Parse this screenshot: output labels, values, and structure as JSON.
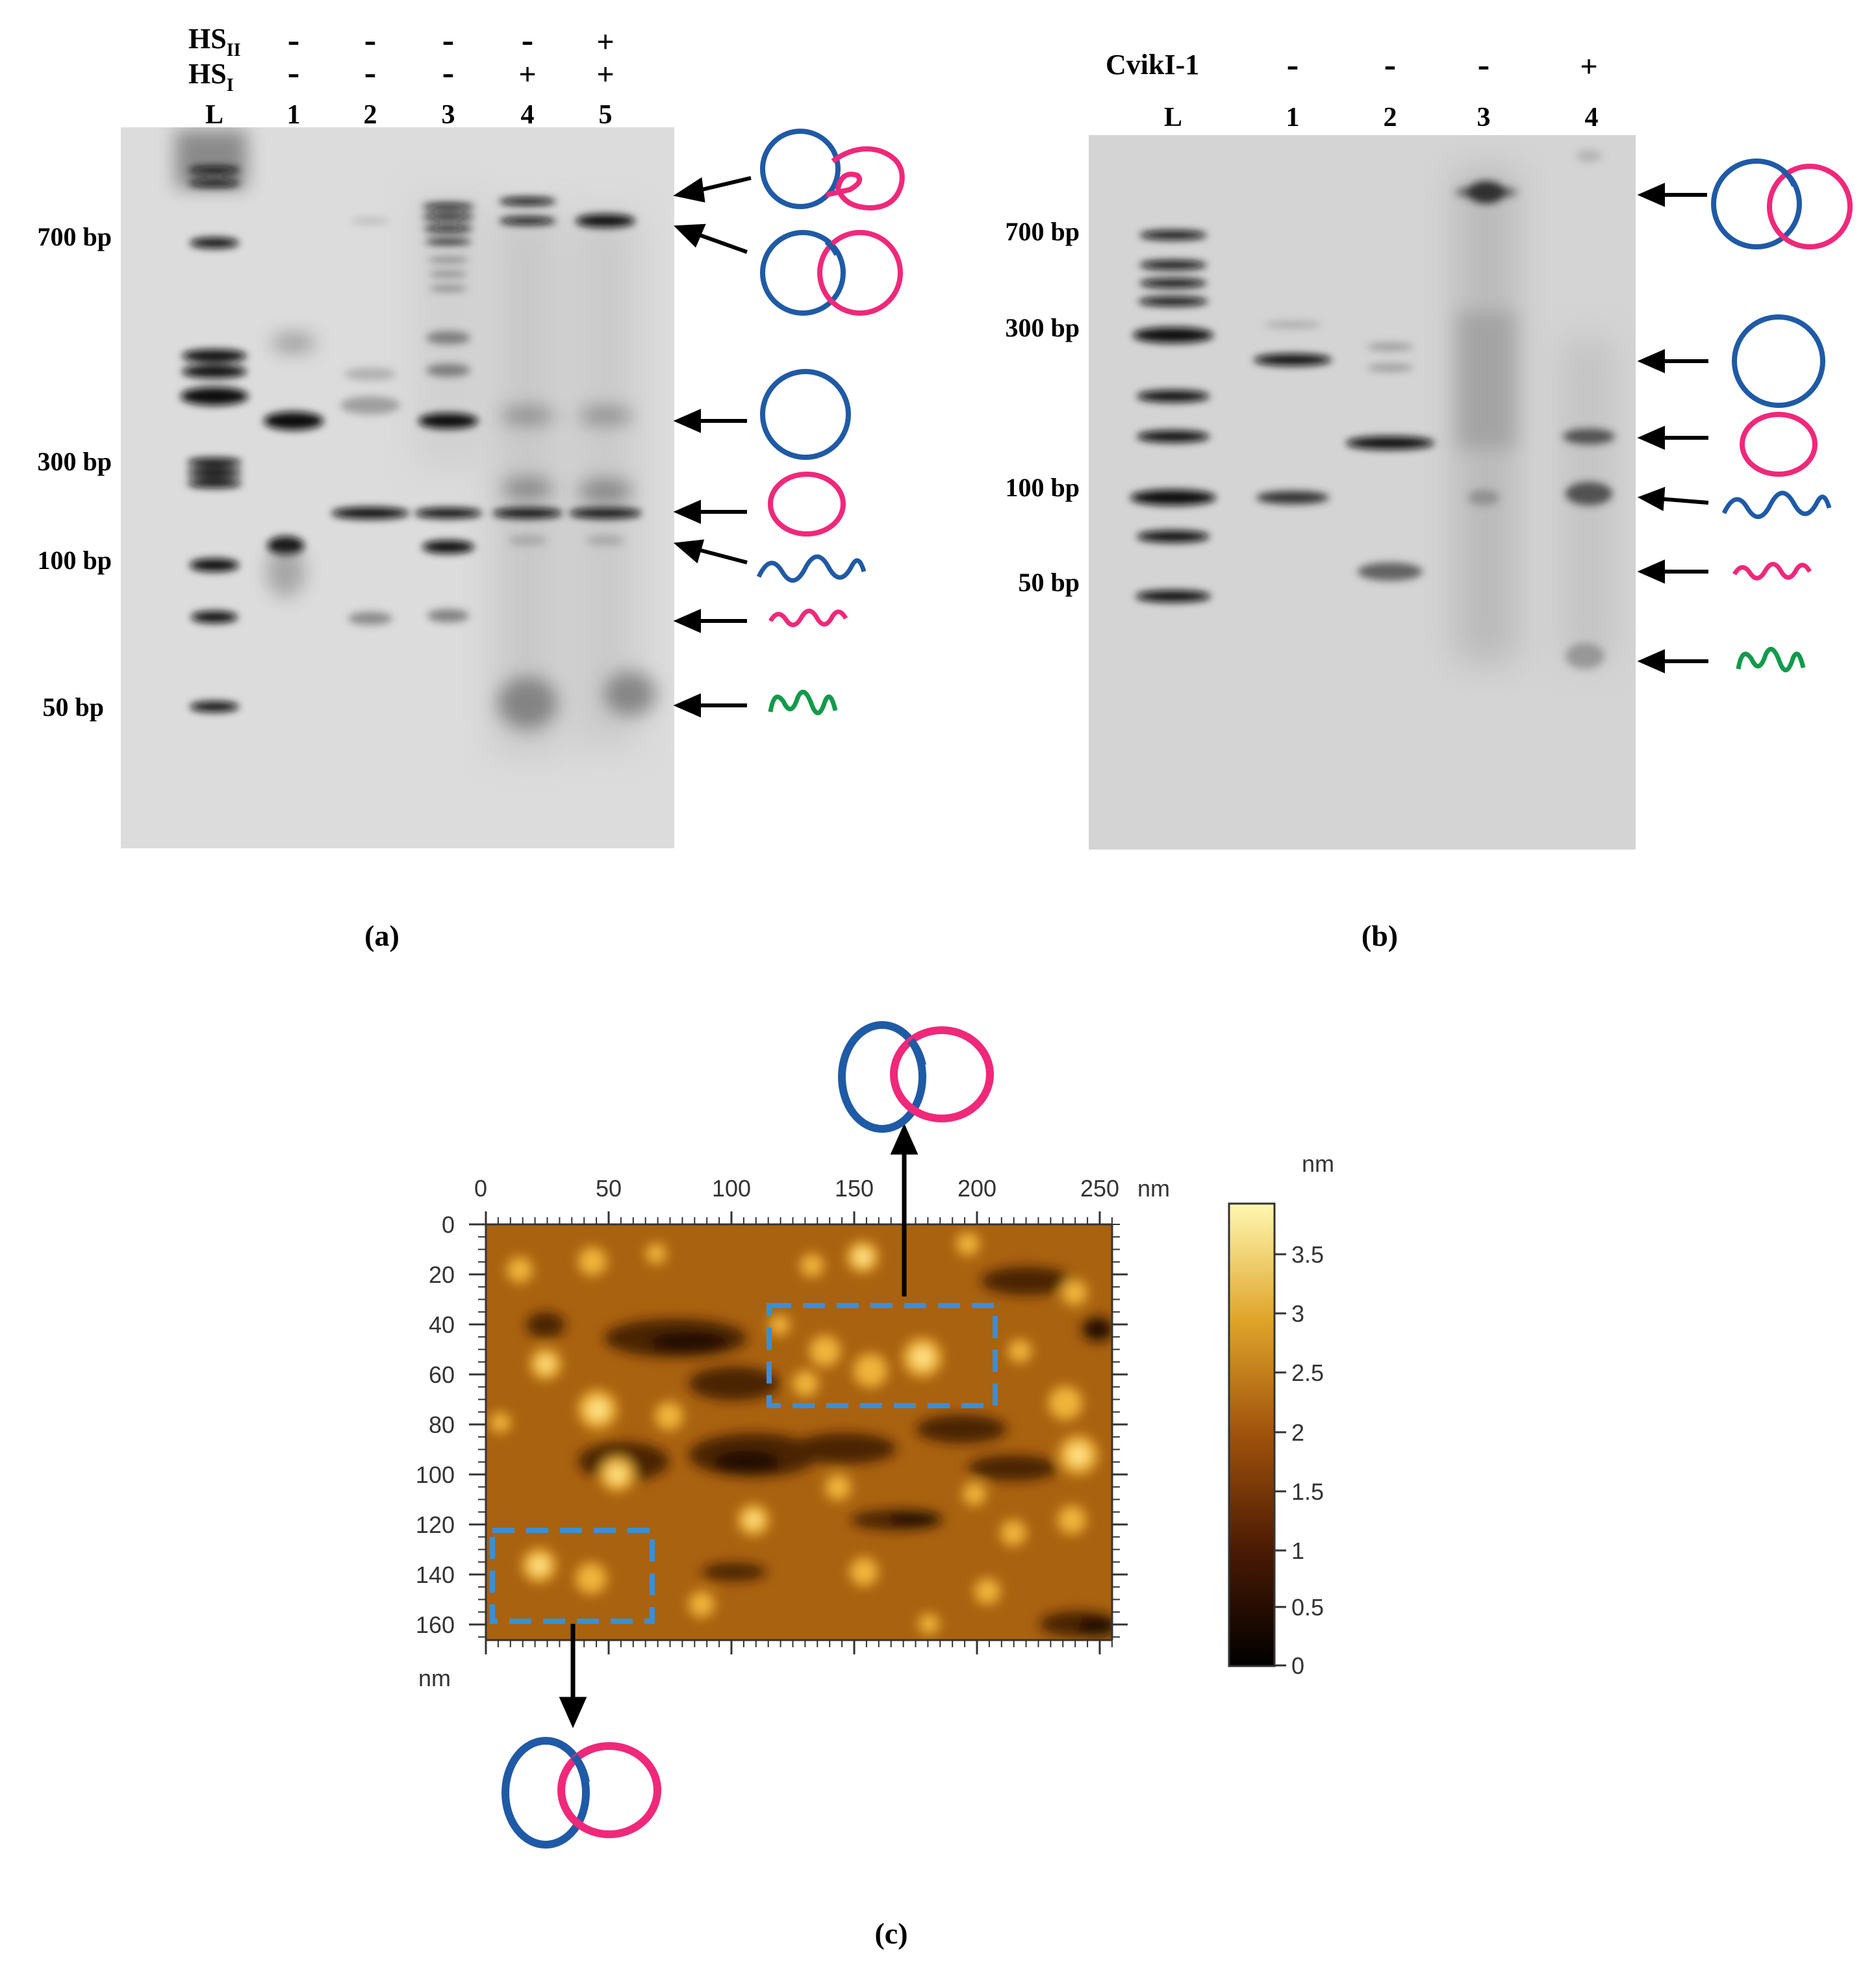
{
  "panels": {
    "a": {
      "caption": "(a)",
      "rows": [
        {
          "base": "HS",
          "sub": "II",
          "marks": [
            "-",
            "-",
            "-",
            "-",
            "+"
          ]
        },
        {
          "base": "HS",
          "sub": "I",
          "marks": [
            "-",
            "-",
            "-",
            "+",
            "+"
          ]
        }
      ],
      "lanes": [
        "L",
        "1",
        "2",
        "3",
        "4",
        "5"
      ],
      "size_labels": [
        "700 bp",
        "300 bp",
        "100 bp",
        "50 bp"
      ],
      "legend_icons": [
        "catenane-knotted-icon",
        "catenane-icon",
        "blue-ring-icon",
        "pink-ring-icon",
        "blue-linear-icon",
        "pink-linear-icon",
        "green-linear-icon"
      ]
    },
    "b": {
      "caption": "(b)",
      "row_label": "CvikI-1",
      "marks": [
        "-",
        "-",
        "-",
        "+"
      ],
      "lanes": [
        "L",
        "1",
        "2",
        "3",
        "4"
      ],
      "size_labels": [
        "700 bp",
        "300 bp",
        "100 bp",
        "50 bp"
      ],
      "legend_icons": [
        "catenane-icon",
        "blue-ring-icon",
        "pink-ring-icon",
        "blue-linear-icon",
        "pink-linear-icon",
        "green-linear-icon"
      ]
    },
    "c": {
      "caption": "(c)",
      "x_ticks": [
        "0",
        "50",
        "100",
        "150",
        "200",
        "250"
      ],
      "x_unit": "nm",
      "y_ticks": [
        "0",
        "20",
        "40",
        "60",
        "80",
        "100",
        "120",
        "140",
        "160"
      ],
      "y_unit": "nm",
      "colorbar_unit": "nm",
      "colorbar_ticks": [
        "3.5",
        "3",
        "2.5",
        "2",
        "1.5",
        "1",
        "0.5",
        "0"
      ],
      "colorbar_range": [
        0,
        3.9
      ],
      "colors": {
        "blue": "#1f5aa6",
        "pink": "#f0287a",
        "green": "#129a4a",
        "box": "#3a8fd8"
      }
    }
  }
}
